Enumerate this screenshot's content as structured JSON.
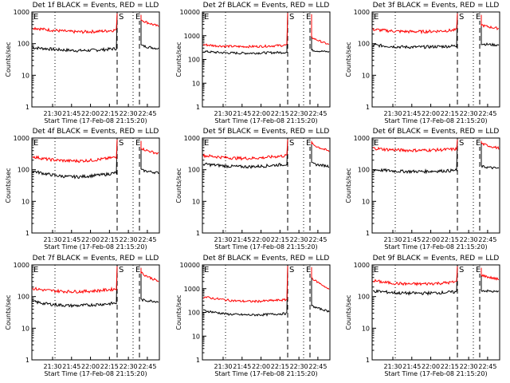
{
  "page": {
    "ylabel": "Counts/sec",
    "xlabel": "Start Time (17-Feb-08 21:15:20)",
    "x_ticks": [
      "21:30",
      "21:45",
      "22:00",
      "22:15",
      "22:30",
      "22:45"
    ],
    "colors": {
      "events": "#000000",
      "lld": "#ff0000",
      "background": "#ffffff"
    }
  },
  "chart_data": [
    {
      "type": "line",
      "title": "Det 1f BLACK = Events, RED = LLD",
      "ylim": [
        1,
        1000
      ],
      "y_ticks": [
        "1",
        "10",
        "100",
        "1000"
      ],
      "yscale": "log",
      "markers": [
        "S",
        "E"
      ],
      "events_level": [
        75,
        70,
        65,
        62,
        60,
        62,
        65,
        70
      ],
      "lld_level": [
        320,
        280,
        260,
        240,
        235,
        240,
        250,
        270
      ],
      "post_events": [
        90,
        70
      ],
      "post_lld": [
        600,
        350
      ]
    },
    {
      "type": "line",
      "title": "Det 2f BLACK = Events, RED = LLD",
      "ylim": [
        1,
        10000
      ],
      "y_ticks": [
        "1",
        "10",
        "100",
        "1000",
        "10000"
      ],
      "yscale": "log",
      "markers": [
        "S",
        "E"
      ],
      "events_level": [
        220,
        200,
        190,
        185,
        185,
        190,
        195,
        200
      ],
      "lld_level": [
        420,
        380,
        360,
        350,
        350,
        360,
        380,
        400
      ],
      "post_events": [
        250,
        210
      ],
      "post_lld": [
        900,
        420
      ]
    },
    {
      "type": "line",
      "title": "Det 3f BLACK = Events, RED = LLD",
      "ylim": [
        1,
        1000
      ],
      "y_ticks": [
        "1",
        "10",
        "100",
        "1000"
      ],
      "yscale": "log",
      "markers": [
        "S",
        "E"
      ],
      "events_level": [
        90,
        85,
        80,
        78,
        78,
        80,
        82,
        85
      ],
      "lld_level": [
        280,
        260,
        245,
        240,
        240,
        245,
        255,
        270
      ],
      "post_events": [
        100,
        90
      ],
      "post_lld": [
        400,
        300
      ]
    },
    {
      "type": "line",
      "title": "Det 4f BLACK = Events, RED = LLD",
      "ylim": [
        1,
        1000
      ],
      "y_ticks": [
        "1",
        "10",
        "100",
        "1000"
      ],
      "yscale": "log",
      "markers": [
        "S",
        "E"
      ],
      "events_level": [
        90,
        75,
        65,
        60,
        60,
        65,
        70,
        80
      ],
      "lld_level": [
        260,
        220,
        200,
        190,
        190,
        200,
        220,
        250
      ],
      "post_events": [
        100,
        80
      ],
      "post_lld": [
        500,
        320
      ]
    },
    {
      "type": "line",
      "title": "Det 5f BLACK = Events, RED = LLD",
      "ylim": [
        1,
        1000
      ],
      "y_ticks": [
        "1",
        "10",
        "100",
        "1000"
      ],
      "yscale": "log",
      "markers": [
        "S",
        "E"
      ],
      "events_level": [
        150,
        140,
        130,
        125,
        125,
        130,
        140,
        150
      ],
      "lld_level": [
        280,
        260,
        240,
        230,
        230,
        240,
        260,
        280
      ],
      "post_events": [
        160,
        130
      ],
      "post_lld": [
        700,
        380
      ]
    },
    {
      "type": "line",
      "title": "Det 6f BLACK = Events, RED = LLD",
      "ylim": [
        1,
        1000
      ],
      "y_ticks": [
        "1",
        "10",
        "100",
        "1000"
      ],
      "yscale": "log",
      "markers": [
        "S",
        "E"
      ],
      "events_level": [
        100,
        95,
        90,
        88,
        88,
        90,
        92,
        95
      ],
      "lld_level": [
        480,
        440,
        420,
        410,
        410,
        420,
        430,
        450
      ],
      "post_events": [
        130,
        110
      ],
      "post_lld": [
        700,
        480
      ]
    },
    {
      "type": "line",
      "title": "Det 7f BLACK = Events, RED = LLD",
      "ylim": [
        1,
        1000
      ],
      "y_ticks": [
        "1",
        "10",
        "100",
        "1000"
      ],
      "yscale": "log",
      "markers": [
        "S",
        "E"
      ],
      "events_level": [
        70,
        60,
        55,
        52,
        52,
        55,
        58,
        62
      ],
      "lld_level": [
        180,
        160,
        150,
        145,
        145,
        150,
        160,
        175
      ],
      "post_events": [
        80,
        70
      ],
      "post_lld": [
        600,
        300
      ]
    },
    {
      "type": "line",
      "title": "Det 8f BLACK = Events, RED = LLD",
      "ylim": [
        1,
        10000
      ],
      "y_ticks": [
        "1",
        "10",
        "100",
        "1000",
        "10000"
      ],
      "yscale": "log",
      "markers": [
        "S",
        "E"
      ],
      "events_level": [
        120,
        100,
        85,
        80,
        78,
        80,
        85,
        90
      ],
      "lld_level": [
        450,
        380,
        330,
        300,
        290,
        300,
        320,
        340
      ],
      "post_events": [
        200,
        110
      ],
      "post_lld": [
        3000,
        900
      ]
    },
    {
      "type": "line",
      "title": "Det 9f BLACK = Events, RED = LLD",
      "ylim": [
        1,
        1000
      ],
      "y_ticks": [
        "1",
        "10",
        "100",
        "1000"
      ],
      "yscale": "log",
      "markers": [
        "S",
        "E"
      ],
      "events_level": [
        150,
        140,
        130,
        128,
        128,
        130,
        135,
        140
      ],
      "lld_level": [
        320,
        280,
        260,
        250,
        250,
        260,
        270,
        290
      ],
      "post_events": [
        160,
        140
      ],
      "post_lld": [
        500,
        350
      ]
    }
  ]
}
